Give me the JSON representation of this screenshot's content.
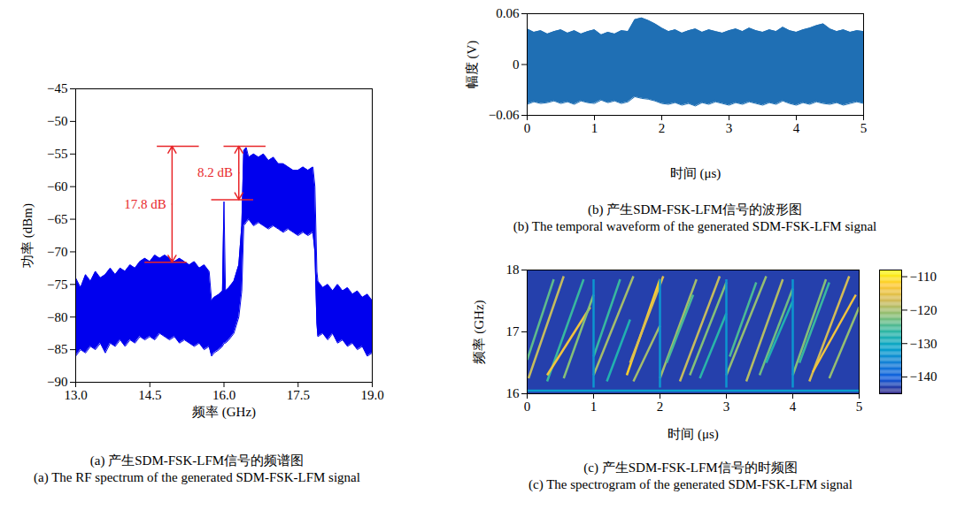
{
  "chart_data": [
    {
      "type": "area",
      "caption": [
        "(a) 产生SDM-FSK-LFM信号的频谱图",
        "(a) The RF spectrum of the generated SDM-FSK-LFM signal"
      ],
      "xlabel": "频率 (GHz)",
      "ylabel": "功率 (dBm)",
      "xlim": [
        13,
        19
      ],
      "xticks": [
        {
          "value": 13,
          "label": "13.0"
        },
        {
          "value": 14.5,
          "label": "14.5"
        },
        {
          "value": 16,
          "label": "16.0"
        },
        {
          "value": 17.5,
          "label": "17.5"
        },
        {
          "value": 19,
          "label": "19.0"
        }
      ],
      "ylim": [
        -90,
        -45
      ],
      "yticks": [
        {
          "value": -90,
          "label": "−90"
        },
        {
          "value": -85,
          "label": "−85"
        },
        {
          "value": -80,
          "label": "−80"
        },
        {
          "value": -75,
          "label": "−75"
        },
        {
          "value": -70,
          "label": "−70"
        },
        {
          "value": -65,
          "label": "−65"
        },
        {
          "value": -60,
          "label": "−60"
        },
        {
          "value": -55,
          "label": "−55"
        },
        {
          "value": -50,
          "label": "−50"
        },
        {
          "value": -45,
          "label": "−45"
        }
      ],
      "color": "#0000ee",
      "x": [
        13.0,
        13.1,
        13.2,
        13.3,
        13.4,
        13.5,
        13.6,
        13.7,
        13.8,
        13.9,
        14.0,
        14.1,
        14.2,
        14.3,
        14.4,
        14.5,
        14.6,
        14.7,
        14.8,
        14.9,
        15.0,
        15.1,
        15.2,
        15.3,
        15.4,
        15.5,
        15.6,
        15.7,
        15.75,
        15.8,
        15.9,
        15.97,
        16.0,
        16.03,
        16.1,
        16.2,
        16.3,
        16.36,
        16.4,
        16.45,
        16.5,
        16.6,
        16.7,
        16.8,
        16.9,
        17.0,
        17.1,
        17.2,
        17.3,
        17.4,
        17.5,
        17.6,
        17.7,
        17.8,
        17.84,
        17.88,
        17.9,
        18.0,
        18.1,
        18.2,
        18.3,
        18.4,
        18.5,
        18.6,
        18.7,
        18.8,
        18.9,
        19.0
      ],
      "upper": [
        -74,
        -75.5,
        -73.5,
        -74.5,
        -73,
        -74,
        -73.5,
        -72.5,
        -73.5,
        -72.5,
        -73,
        -72,
        -72.5,
        -71.5,
        -71,
        -71.5,
        -70.5,
        -71,
        -70.5,
        -71,
        -71.5,
        -71,
        -71.5,
        -72,
        -71.5,
        -72.5,
        -72,
        -73,
        -77.5,
        -77,
        -76.5,
        -76,
        -62.3,
        -76,
        -75.5,
        -74.5,
        -72,
        -66,
        -54.5,
        -54,
        -55.5,
        -55,
        -55.5,
        -55,
        -56,
        -55.5,
        -56.5,
        -56.5,
        -57,
        -57.5,
        -57.5,
        -57,
        -57.5,
        -57,
        -60,
        -73,
        -74.5,
        -75.5,
        -75,
        -76,
        -75,
        -76,
        -75.5,
        -76.5,
        -76,
        -77,
        -76.5,
        -77.5
      ],
      "lower": [
        -86,
        -85,
        -85.5,
        -84.5,
        -85,
        -84,
        -85.5,
        -84,
        -84.5,
        -83.5,
        -84.5,
        -83.5,
        -84,
        -83,
        -83.5,
        -83,
        -83.5,
        -82.5,
        -83,
        -83.5,
        -83,
        -84,
        -83.5,
        -84,
        -84.5,
        -84,
        -85,
        -84.5,
        -86,
        -85.5,
        -85,
        -84.5,
        -84,
        -84,
        -83.5,
        -82.5,
        -80,
        -76,
        -66,
        -65.5,
        -65,
        -66,
        -65.5,
        -66,
        -66.5,
        -66,
        -66.5,
        -67,
        -66.5,
        -67,
        -67.5,
        -67,
        -67.5,
        -67,
        -70,
        -81,
        -83,
        -82.5,
        -83.5,
        -82.5,
        -84,
        -83.5,
        -84.5,
        -84,
        -85,
        -84.5,
        -86,
        -85.5
      ],
      "annotations": [
        {
          "text": "17.8 dB",
          "x": 14.95,
          "y1": -53.8,
          "y2": -71.6,
          "color": "#e8262a"
        },
        {
          "text": "8.2 dB",
          "x": 16.3,
          "y1": -53.8,
          "y2": -62.0,
          "color": "#e8262a"
        }
      ]
    },
    {
      "type": "area",
      "caption": [
        "(b) 产生SDM-FSK-LFM信号的波形图",
        "(b) The temporal waveform of the generated SDM-FSK-LFM signal"
      ],
      "xlabel": "时间 (μs)",
      "ylabel": "幅度 (V)",
      "xlim": [
        0,
        5
      ],
      "xticks": [
        0,
        1,
        2,
        3,
        4,
        5
      ],
      "ylim": [
        -0.06,
        0.06
      ],
      "yticks": [
        {
          "value": -0.06,
          "label": "−0.06"
        },
        0,
        0.06
      ],
      "color": "#1f6fb4",
      "x": [
        0,
        0.1,
        0.2,
        0.3,
        0.4,
        0.5,
        0.6,
        0.7,
        0.8,
        0.9,
        1.0,
        1.1,
        1.2,
        1.3,
        1.4,
        1.5,
        1.6,
        1.7,
        1.8,
        1.9,
        2.0,
        2.1,
        2.2,
        2.3,
        2.4,
        2.5,
        2.6,
        2.7,
        2.8,
        2.9,
        3.0,
        3.1,
        3.2,
        3.3,
        3.4,
        3.5,
        3.6,
        3.7,
        3.8,
        3.9,
        4.0,
        4.1,
        4.2,
        4.3,
        4.4,
        4.5,
        4.6,
        4.7,
        4.8,
        4.9,
        5.0
      ],
      "upper": [
        0.042,
        0.038,
        0.04,
        0.036,
        0.039,
        0.041,
        0.037,
        0.04,
        0.036,
        0.039,
        0.041,
        0.035,
        0.038,
        0.036,
        0.04,
        0.039,
        0.053,
        0.055,
        0.052,
        0.048,
        0.043,
        0.039,
        0.041,
        0.037,
        0.04,
        0.042,
        0.038,
        0.041,
        0.039,
        0.037,
        0.04,
        0.042,
        0.039,
        0.043,
        0.04,
        0.038,
        0.041,
        0.039,
        0.044,
        0.04,
        0.038,
        0.041,
        0.043,
        0.046,
        0.048,
        0.042,
        0.039,
        0.041,
        0.038,
        0.04,
        0.039
      ],
      "lower": [
        -0.047,
        -0.044,
        -0.046,
        -0.045,
        -0.043,
        -0.046,
        -0.044,
        -0.047,
        -0.043,
        -0.045,
        -0.046,
        -0.042,
        -0.045,
        -0.043,
        -0.046,
        -0.044,
        -0.038,
        -0.04,
        -0.041,
        -0.043,
        -0.046,
        -0.047,
        -0.045,
        -0.048,
        -0.046,
        -0.049,
        -0.045,
        -0.047,
        -0.044,
        -0.046,
        -0.048,
        -0.045,
        -0.047,
        -0.044,
        -0.046,
        -0.048,
        -0.045,
        -0.047,
        -0.043,
        -0.046,
        -0.048,
        -0.045,
        -0.047,
        -0.044,
        -0.046,
        -0.047,
        -0.045,
        -0.048,
        -0.046,
        -0.044,
        -0.046
      ]
    },
    {
      "type": "spectrogram",
      "caption": [
        "(c) 产生SDM-FSK-LFM信号的时频图",
        "(c) The spectrogram of the generated SDM-FSK-LFM signal"
      ],
      "xlabel": "时间 (μs)",
      "ylabel": "频率 (GHz)",
      "xlim": [
        0,
        5
      ],
      "xticks": [
        0,
        1,
        2,
        3,
        4,
        5
      ],
      "ylim": [
        16,
        18
      ],
      "yticks": [
        16,
        17,
        18
      ],
      "colorbar": {
        "range": [
          -145,
          -108
        ],
        "ticks": [
          {
            "value": -140,
            "label": "−140"
          },
          {
            "value": -130,
            "label": "−130"
          },
          {
            "value": -120,
            "label": "−120"
          },
          {
            "value": -110,
            "label": "−110"
          }
        ]
      },
      "background_level": -143,
      "segments": [
        {
          "t0": 0.0,
          "f0": 16.55,
          "t1": 0.4,
          "f1": 17.85,
          "level": -124
        },
        {
          "t0": 0.02,
          "f0": 16.25,
          "t1": 0.55,
          "f1": 17.9,
          "level": -118
        },
        {
          "t0": 0.3,
          "f0": 16.2,
          "t1": 0.85,
          "f1": 17.85,
          "level": -126
        },
        {
          "t0": 0.3,
          "f0": 16.3,
          "t1": 0.95,
          "f1": 17.4,
          "level": -114
        },
        {
          "t0": 0.55,
          "f0": 16.25,
          "t1": 1.0,
          "f1": 17.6,
          "level": -122
        },
        {
          "t0": 1.0,
          "f0": 16.6,
          "t1": 1.4,
          "f1": 17.85,
          "level": -126
        },
        {
          "t0": 1.0,
          "f0": 16.3,
          "t1": 1.6,
          "f1": 17.9,
          "level": -120
        },
        {
          "t0": 1.2,
          "f0": 16.2,
          "t1": 1.55,
          "f1": 17.2,
          "level": -128
        },
        {
          "t0": 1.5,
          "f0": 16.3,
          "t1": 2.0,
          "f1": 17.85,
          "level": -112
        },
        {
          "t0": 1.55,
          "f0": 16.5,
          "t1": 2.05,
          "f1": 17.9,
          "level": -116
        },
        {
          "t0": 1.6,
          "f0": 16.2,
          "t1": 2.0,
          "f1": 17.1,
          "level": -120
        },
        {
          "t0": 2.0,
          "f0": 16.25,
          "t1": 2.55,
          "f1": 17.85,
          "level": -120
        },
        {
          "t0": 2.1,
          "f0": 16.5,
          "t1": 2.5,
          "f1": 17.6,
          "level": -125
        },
        {
          "t0": 2.3,
          "f0": 16.2,
          "t1": 2.9,
          "f1": 17.9,
          "level": -118
        },
        {
          "t0": 2.45,
          "f0": 16.3,
          "t1": 3.0,
          "f1": 17.8,
          "level": -122
        },
        {
          "t0": 2.6,
          "f0": 16.25,
          "t1": 3.0,
          "f1": 17.3,
          "level": -127
        },
        {
          "t0": 3.0,
          "f0": 16.3,
          "t1": 3.6,
          "f1": 17.9,
          "level": -121
        },
        {
          "t0": 3.05,
          "f0": 16.6,
          "t1": 3.45,
          "f1": 17.8,
          "level": -125
        },
        {
          "t0": 3.3,
          "f0": 16.2,
          "t1": 3.85,
          "f1": 17.85,
          "level": -119
        },
        {
          "t0": 3.5,
          "f0": 16.3,
          "t1": 4.0,
          "f1": 17.7,
          "level": -123
        },
        {
          "t0": 3.6,
          "f0": 16.5,
          "t1": 4.0,
          "f1": 17.5,
          "level": -128
        },
        {
          "t0": 4.0,
          "f0": 16.3,
          "t1": 4.5,
          "f1": 17.85,
          "level": -122
        },
        {
          "t0": 4.1,
          "f0": 16.5,
          "t1": 4.55,
          "f1": 17.8,
          "level": -126
        },
        {
          "t0": 4.25,
          "f0": 16.2,
          "t1": 4.85,
          "f1": 17.9,
          "level": -117
        },
        {
          "t0": 4.3,
          "f0": 16.35,
          "t1": 4.95,
          "f1": 17.6,
          "level": -114
        },
        {
          "t0": 4.55,
          "f0": 16.25,
          "t1": 5.0,
          "f1": 17.4,
          "level": -121
        },
        {
          "t0": 0.0,
          "f0": 16.05,
          "t1": 5.0,
          "f1": 16.05,
          "level": -132
        },
        {
          "t0": 1.0,
          "f0": 16.1,
          "t1": 1.0,
          "f1": 17.85,
          "level": -133
        },
        {
          "t0": 2.0,
          "f0": 16.1,
          "t1": 2.0,
          "f1": 17.85,
          "level": -133
        },
        {
          "t0": 3.0,
          "f0": 16.1,
          "t1": 3.0,
          "f1": 17.85,
          "level": -133
        },
        {
          "t0": 4.0,
          "f0": 16.1,
          "t1": 4.0,
          "f1": 17.85,
          "level": -133
        }
      ]
    }
  ]
}
